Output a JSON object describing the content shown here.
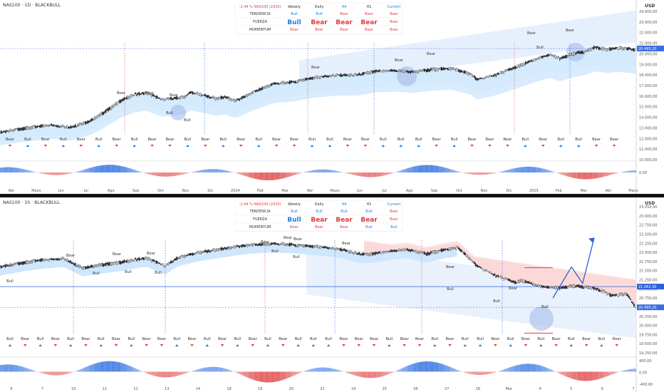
{
  "chart_data": [
    {
      "type": "candlestick",
      "title": "NAS100 · 1D · BLACKBULL",
      "currency": "USD",
      "last_price_label": "20.495,20",
      "yaxis_labels": [
        "24.000,00",
        "23.000,00",
        "22.000,00",
        "21.000,00",
        "20.000,00",
        "19.000,00",
        "18.000,00",
        "17.000,00",
        "16.000,00",
        "15.000,00",
        "14.000,00",
        "13.000,00",
        "12.000,00",
        "11.000,00",
        "10.000,00"
      ],
      "yaxis_values": [
        24000,
        23000,
        22000,
        21000,
        20000,
        19000,
        18000,
        17000,
        16000,
        15000,
        14000,
        13000,
        12000,
        11000,
        10000
      ],
      "xaxis_labels": [
        "Abr",
        "Mayo",
        "Jun",
        "Jul",
        "Ago",
        "Sep",
        "Oct",
        "Nov",
        "Dic",
        "2024",
        "Feb",
        "Mar",
        "Abr",
        "Mayo",
        "Jun",
        "Jul",
        "Ago",
        "Sep",
        "Oct",
        "Nov",
        "Dic",
        "2025",
        "Feb",
        "Mar",
        "Abr",
        "Mayo"
      ],
      "oscillator_label": "0,00",
      "price_path": [
        [
          0,
          12650
        ],
        [
          0.04,
          13050
        ],
        [
          0.08,
          13350
        ],
        [
          0.11,
          13150
        ],
        [
          0.14,
          13700
        ],
        [
          0.16,
          14400
        ],
        [
          0.19,
          15650
        ],
        [
          0.21,
          16200
        ],
        [
          0.23,
          16400
        ],
        [
          0.255,
          15750
        ],
        [
          0.27,
          15850
        ],
        [
          0.29,
          16000
        ],
        [
          0.3,
          16450
        ],
        [
          0.32,
          16150
        ],
        [
          0.34,
          15850
        ],
        [
          0.355,
          16000
        ],
        [
          0.37,
          15600
        ],
        [
          0.4,
          16500
        ],
        [
          0.43,
          17250
        ],
        [
          0.46,
          17400
        ],
        [
          0.49,
          17800
        ],
        [
          0.53,
          18050
        ],
        [
          0.56,
          18050
        ],
        [
          0.59,
          18400
        ],
        [
          0.62,
          18500
        ],
        [
          0.65,
          18350
        ],
        [
          0.68,
          18600
        ],
        [
          0.71,
          18700
        ],
        [
          0.74,
          18150
        ],
        [
          0.75,
          17650
        ],
        [
          0.78,
          18100
        ],
        [
          0.81,
          18800
        ],
        [
          0.84,
          19500
        ],
        [
          0.865,
          20000
        ],
        [
          0.88,
          19600
        ],
        [
          0.9,
          20050
        ],
        [
          0.92,
          20300
        ],
        [
          0.935,
          20700
        ],
        [
          0.955,
          20500
        ],
        [
          0.97,
          20650
        ],
        [
          1.0,
          20450
        ]
      ],
      "signals_top": [
        "Bear",
        "Bear",
        "Bear",
        "Bear",
        "Bull",
        "Bear",
        "Bear",
        "Bull"
      ],
      "signal_row": [
        "Bear",
        "Bull",
        "Bear",
        "Bull",
        "Bear",
        "Bull",
        "Bear",
        "Bull",
        "Bear",
        "Bear",
        "Bull",
        "Bear",
        "Bull",
        "Bear",
        "Bull",
        "Bear",
        "Bear",
        "Bull",
        "Bull",
        "Bear",
        "Bear",
        "Bull",
        "Bull",
        "Bull",
        "Bear",
        "Bull",
        "Bear",
        "Bear",
        "Bear",
        "Bull",
        "Bear",
        "Bull",
        "Bull",
        "Bear",
        "Bear"
      ]
    },
    {
      "type": "candlestick",
      "title": "NAS100 · 1h · BLACKBULL",
      "currency": "USD",
      "last_price_label": "20.495,20",
      "level_label": "21.062,30",
      "yaxis_labels": [
        "23.250,00",
        "23.000,00",
        "22.750,00",
        "22.500,00",
        "22.250,00",
        "22.000,00",
        "21.750,00",
        "21.500,00",
        "21.250,00",
        "21.000,00",
        "20.750,00",
        "20.500,00",
        "20.250,00",
        "20.000,00",
        "19.750,00",
        "19.500,00",
        "19.250,00"
      ],
      "yaxis_values": [
        23250,
        23000,
        22750,
        22500,
        22250,
        22000,
        21750,
        21500,
        21250,
        21000,
        20750,
        20500,
        20250,
        20000,
        19750,
        19500,
        19250
      ],
      "xaxis_labels": [
        "6",
        "7",
        "10",
        "11",
        "12",
        "13",
        "14",
        "18",
        "19",
        "20",
        "21",
        "24",
        "25",
        "26",
        "27",
        "28",
        "Mar",
        "4",
        "5",
        "6",
        "7"
      ],
      "oscillator_labels": [
        "400,00",
        "0,00",
        "-400,00"
      ],
      "price_path": [
        [
          0,
          21620
        ],
        [
          0.03,
          21720
        ],
        [
          0.06,
          21800
        ],
        [
          0.1,
          21860
        ],
        [
          0.13,
          21600
        ],
        [
          0.15,
          21660
        ],
        [
          0.19,
          21750
        ],
        [
          0.23,
          21870
        ],
        [
          0.26,
          21650
        ],
        [
          0.28,
          21880
        ],
        [
          0.31,
          22010
        ],
        [
          0.35,
          22120
        ],
        [
          0.39,
          22220
        ],
        [
          0.43,
          22260
        ],
        [
          0.46,
          22230
        ],
        [
          0.5,
          22180
        ],
        [
          0.54,
          22090
        ],
        [
          0.56,
          21980
        ],
        [
          0.58,
          21960
        ],
        [
          0.62,
          22070
        ],
        [
          0.64,
          22100
        ],
        [
          0.67,
          21980
        ],
        [
          0.7,
          22100
        ],
        [
          0.72,
          22150
        ],
        [
          0.75,
          21650
        ],
        [
          0.78,
          21380
        ],
        [
          0.81,
          21200
        ],
        [
          0.82,
          21250
        ],
        [
          0.85,
          21080
        ],
        [
          0.88,
          21040
        ],
        [
          0.9,
          21100
        ],
        [
          0.93,
          21060
        ],
        [
          0.95,
          20950
        ],
        [
          0.96,
          20850
        ],
        [
          0.985,
          20880
        ],
        [
          1.0,
          20495
        ]
      ],
      "projection_path": [
        [
          0,
          20750
        ],
        [
          0.45,
          21600
        ],
        [
          0.72,
          21150
        ],
        [
          1.0,
          22400
        ]
      ],
      "signal_row": [
        "Bull",
        "Bear",
        "Bull",
        "Bear",
        "Bull",
        "Bear",
        "Bull",
        "Bear",
        "Bull",
        "Bear",
        "Bear",
        "Bull",
        "Bear",
        "Bull",
        "Bear",
        "Bull",
        "Bear",
        "Bull",
        "Bear",
        "Bull",
        "Bull",
        "Bull",
        "Bear",
        "Bear",
        "Bear",
        "Bull",
        "Bear",
        "Bear",
        "Bull",
        "Bear",
        "Bull",
        "Bull",
        "Bear",
        "Bull",
        "Bear",
        "Bull",
        "Bear",
        "Bull",
        "Bear",
        "Bull",
        "Bear"
      ]
    }
  ],
  "tables": [
    {
      "header": "-2,44 % NAS100 (2025)",
      "columns": [
        "Weekly",
        "Daily",
        "H4",
        "H1",
        "Current"
      ],
      "rows": [
        {
          "label": "TENDENCIA",
          "values": [
            "Bull",
            "Bull",
            "Bear",
            "Bear",
            "Bear"
          ]
        },
        {
          "label": "FUERZA",
          "values": [
            "Bull",
            "Bear",
            "Bear",
            "Bear",
            "Bear"
          ]
        },
        {
          "label": "MOMENTUM",
          "values": [
            "Bear",
            "Bear",
            "Bear",
            "Bear",
            "Bear"
          ]
        }
      ]
    },
    {
      "header": "-2,44 % NAS100 (2025)",
      "columns": [
        "Weekly",
        "Daily",
        "H4",
        "H1",
        "Current"
      ],
      "rows": [
        {
          "label": "TENDENCIA",
          "values": [
            "Bull",
            "Bull",
            "Bull",
            "Bull",
            "Bear"
          ]
        },
        {
          "label": "FUERZA",
          "values": [
            "Bull",
            "Bear",
            "Bear",
            "Bear",
            "Bear"
          ]
        },
        {
          "label": "MOMENTUM",
          "values": [
            "Bear",
            "Bear",
            "Bear",
            "Bull",
            "Bull"
          ]
        }
      ]
    }
  ],
  "colors": {
    "bull": "#1e7fe0",
    "bear": "#e03c3c",
    "band_light": "#bfe0fb",
    "band_dark": "#1f6fd6",
    "bear_band": "#f08a8a"
  }
}
